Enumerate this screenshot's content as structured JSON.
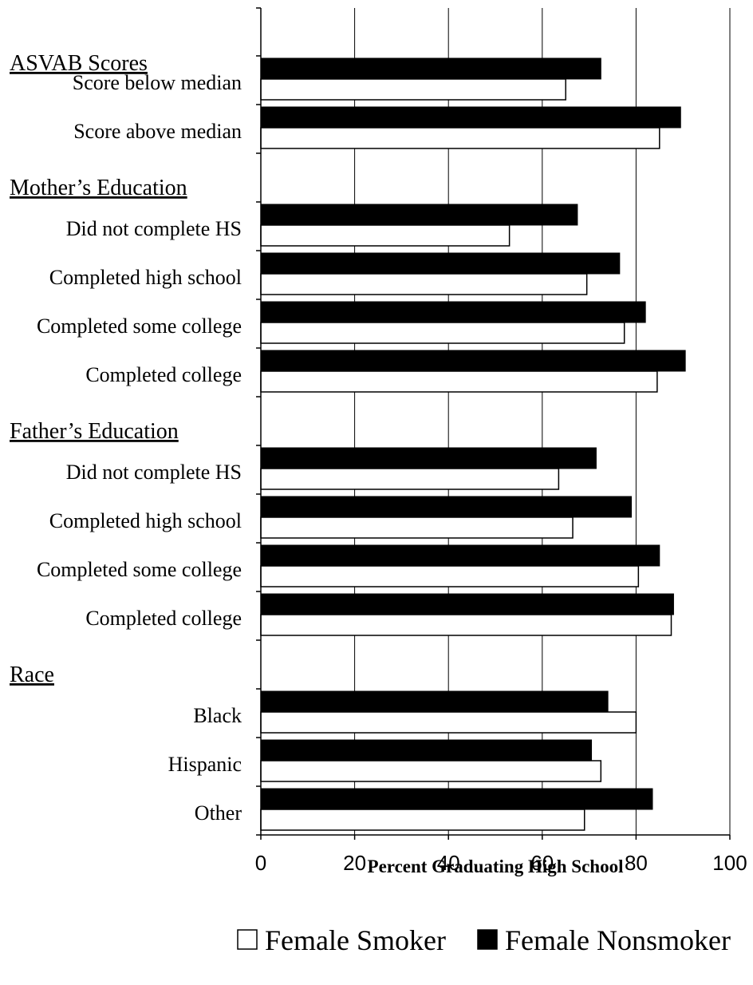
{
  "chart_data": {
    "type": "bar",
    "orientation": "horizontal",
    "xlabel": "Percent Graduating High School",
    "xlim": [
      0,
      100
    ],
    "xticks": [
      0,
      20,
      40,
      60,
      80,
      100
    ],
    "grid": "vertical",
    "legend_position": "bottom-right",
    "groups": [
      {
        "header": "ASVAB Scores",
        "categories": [
          "Score below median",
          "Score above median"
        ],
        "smoker": [
          65,
          85
        ],
        "nonsmoker": [
          72.5,
          89.5
        ]
      },
      {
        "header": "Mother’s Education",
        "categories": [
          "Did not complete HS",
          "Completed high school",
          "Completed some college",
          "Completed college"
        ],
        "smoker": [
          53,
          69.5,
          77.5,
          84.5
        ],
        "nonsmoker": [
          67.5,
          76.5,
          82,
          90.5
        ]
      },
      {
        "header": "Father’s Education",
        "categories": [
          "Did not complete HS",
          "Completed high school",
          "Completed some college",
          "Completed college"
        ],
        "smoker": [
          63.5,
          66.5,
          80.5,
          87.5
        ],
        "nonsmoker": [
          71.5,
          79,
          85,
          88
        ]
      },
      {
        "header": "Race",
        "categories": [
          "Black",
          "Hispanic",
          "Other"
        ],
        "smoker": [
          80,
          72.5,
          69
        ],
        "nonsmoker": [
          74,
          70.5,
          83.5
        ]
      }
    ],
    "series": [
      {
        "key": "smoker",
        "name": "Female Smoker",
        "fill": "#ffffff",
        "stroke": "#000000"
      },
      {
        "key": "nonsmoker",
        "name": "Female Nonsmoker",
        "fill": "#000000",
        "stroke": "#000000"
      }
    ]
  }
}
